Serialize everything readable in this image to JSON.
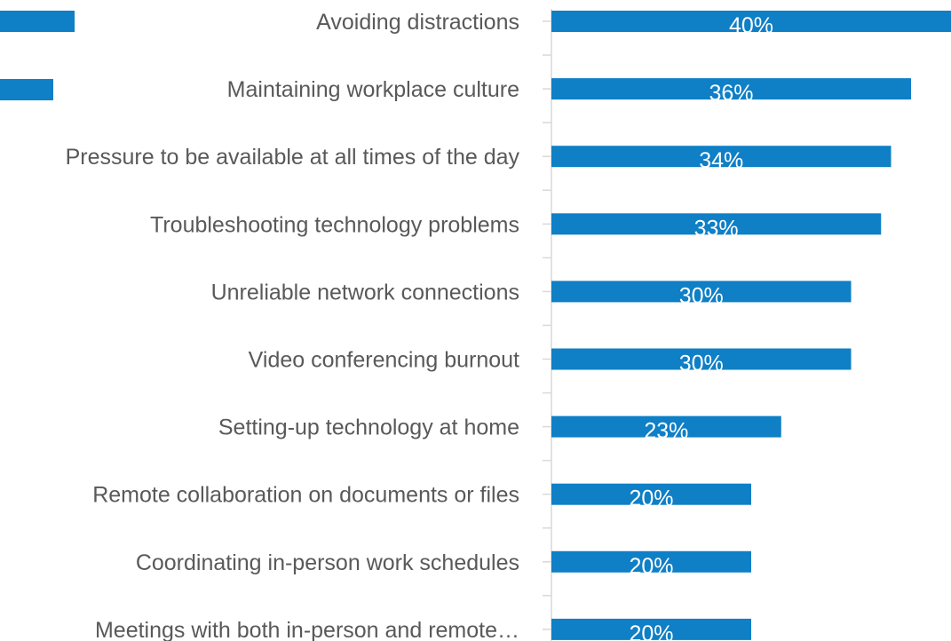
{
  "chart_data": {
    "type": "hbar",
    "categories": [
      "Avoiding distractions",
      "Maintaining workplace culture",
      "Pressure to be available at all times of the day",
      "Troubleshooting technology problems",
      "Unreliable network connections",
      "Video conferencing burnout",
      "Setting-up technology at home",
      "Remote collaboration on documents or files",
      "Coordinating in-person work schedules",
      "Meetings with both in-person and remote…"
    ],
    "values": [
      40,
      36,
      34,
      33,
      30,
      30,
      23,
      20,
      20,
      20
    ],
    "value_labels": [
      "40%",
      "36%",
      "34%",
      "33%",
      "30%",
      "30%",
      "23%",
      "20%",
      "20%",
      "20%"
    ],
    "color": "#0f7fc6"
  }
}
